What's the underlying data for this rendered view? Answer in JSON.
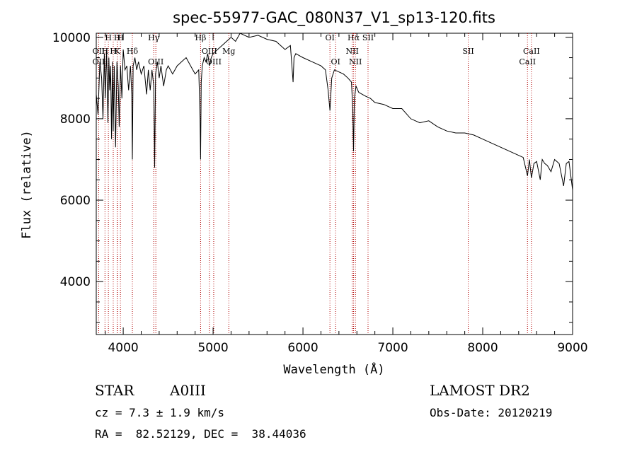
{
  "chart_data": {
    "type": "line",
    "title": "spec-55977-GAC_080N37_V1_sp13-120.fits",
    "xlabel": "Wavelength (Å)",
    "ylabel": "Flux (relative)",
    "xlim": [
      3700,
      9000
    ],
    "ylim": [
      2700,
      10100
    ],
    "x_ticks": [
      4000,
      5000,
      6000,
      7000,
      8000,
      9000
    ],
    "y_ticks": [
      4000,
      6000,
      8000,
      10000
    ],
    "grid": false,
    "series": [
      {
        "x": [
          3700,
          3720,
          3740,
          3760,
          3775,
          3790,
          3800,
          3815,
          3830,
          3840,
          3850,
          3860,
          3870,
          3880,
          3889,
          3900,
          3915,
          3930,
          3945,
          3955,
          3970,
          3985,
          4000,
          4020,
          4040,
          4060,
          4080,
          4095,
          4102,
          4110,
          4130,
          4150,
          4170,
          4200,
          4230,
          4260,
          4280,
          4300,
          4320,
          4340,
          4350,
          4360,
          4380,
          4400,
          4420,
          4450,
          4480,
          4500,
          4550,
          4600,
          4650,
          4700,
          4750,
          4800,
          4840,
          4855,
          4861,
          4868,
          4880,
          4900,
          4920,
          4940,
          4960,
          4980,
          5000,
          5050,
          5100,
          5150,
          5200,
          5250,
          5300,
          5400,
          5500,
          5600,
          5700,
          5800,
          5860,
          5890,
          5900,
          5920,
          5960,
          6000,
          6100,
          6200,
          6250,
          6280,
          6300,
          6320,
          6350,
          6400,
          6450,
          6500,
          6540,
          6555,
          6563,
          6572,
          6590,
          6620,
          6660,
          6700,
          6750,
          6800,
          6900,
          7000,
          7100,
          7200,
          7300,
          7400,
          7500,
          7600,
          7700,
          7800,
          7900,
          8000,
          8100,
          8200,
          8300,
          8400,
          8450,
          8498,
          8520,
          8542,
          8570,
          8600,
          8640,
          8662,
          8690,
          8720,
          8760,
          8800,
          8850,
          8900,
          8930,
          8960,
          9000
        ],
        "y": [
          8600,
          8100,
          9400,
          9000,
          8000,
          9600,
          8500,
          9700,
          7900,
          9500,
          8700,
          9300,
          7500,
          9400,
          7700,
          9300,
          7300,
          9400,
          8800,
          7800,
          9300,
          8500,
          9700,
          9200,
          9300,
          8700,
          9300,
          8600,
          7000,
          9300,
          9500,
          9200,
          9400,
          9100,
          9300,
          8600,
          9200,
          8700,
          9200,
          8800,
          6800,
          9100,
          9400,
          9000,
          9300,
          8800,
          9200,
          9300,
          9100,
          9300,
          9400,
          9500,
          9300,
          9100,
          9200,
          8000,
          7000,
          8900,
          9300,
          9500,
          9400,
          9600,
          9300,
          9500,
          9600,
          9700,
          9800,
          9900,
          10000,
          9900,
          10100,
          10000,
          10050,
          9950,
          9900,
          9700,
          9800,
          8900,
          9500,
          9600,
          9550,
          9500,
          9400,
          9300,
          9200,
          8700,
          8200,
          9000,
          9200,
          9150,
          9100,
          9000,
          8900,
          8200,
          7200,
          8500,
          8800,
          8650,
          8600,
          8550,
          8500,
          8400,
          8350,
          8250,
          8250,
          8000,
          7900,
          7950,
          7800,
          7700,
          7650,
          7650,
          7600,
          7500,
          7400,
          7300,
          7200,
          7100,
          7050,
          6600,
          7000,
          6550,
          6900,
          6950,
          6500,
          7000,
          6900,
          6850,
          6700,
          7000,
          6900,
          6350,
          6900,
          6950,
          6250
        ]
      }
    ],
    "emission_lines": [
      {
        "label": "Hβ",
        "wavelength": 4861
      },
      {
        "label": "Hγ",
        "wavelength": 4340
      },
      {
        "label": "Hδ",
        "wavelength": 4102
      },
      {
        "label": "H",
        "wavelength": 3969
      },
      {
        "label": "Hα",
        "wavelength": 6563
      },
      {
        "label": "SII",
        "wavelength": 6724
      },
      {
        "label": "SII",
        "wavelength": 7839
      },
      {
        "label": "CaII",
        "wavelength": 8542
      },
      {
        "label": "CaII",
        "wavelength": 8498
      },
      {
        "label": "OIII",
        "wavelength": 4363
      },
      {
        "label": "OIII",
        "wavelength": 4959
      },
      {
        "label": "OIII",
        "wavelength": 5007
      },
      {
        "label": "OI",
        "wavelength": 6300
      },
      {
        "label": "OI",
        "wavelength": 6363
      },
      {
        "label": "NII",
        "wavelength": 6548
      },
      {
        "label": "NII",
        "wavelength": 6584
      },
      {
        "label": "Mg",
        "wavelength": 5175
      },
      {
        "label": "OII",
        "wavelength": 3727
      },
      {
        "label": "OII",
        "wavelength": 3727
      },
      {
        "label": "H",
        "wavelength": 3797
      },
      {
        "label": "H",
        "wavelength": 3835
      },
      {
        "label": "H",
        "wavelength": 3889
      },
      {
        "label": "H",
        "wavelength": 3934
      },
      {
        "label": "K",
        "wavelength": 3934
      }
    ],
    "absorption_lines": [
      3797,
      3835,
      3889,
      3934,
      3969,
      4102,
      4340,
      4861,
      5175,
      5890,
      6300,
      6563,
      8498,
      8542,
      8662
    ]
  },
  "info": {
    "object_type": "STAR",
    "subclass": "A0III",
    "survey": "LAMOST DR2",
    "redshift_text": "cz = 7.3 ± 1.9 km/s",
    "obs_date_text": "Obs-Date: 20120219",
    "coords_text": "RA =  82.52129, DEC =  38.44036"
  }
}
